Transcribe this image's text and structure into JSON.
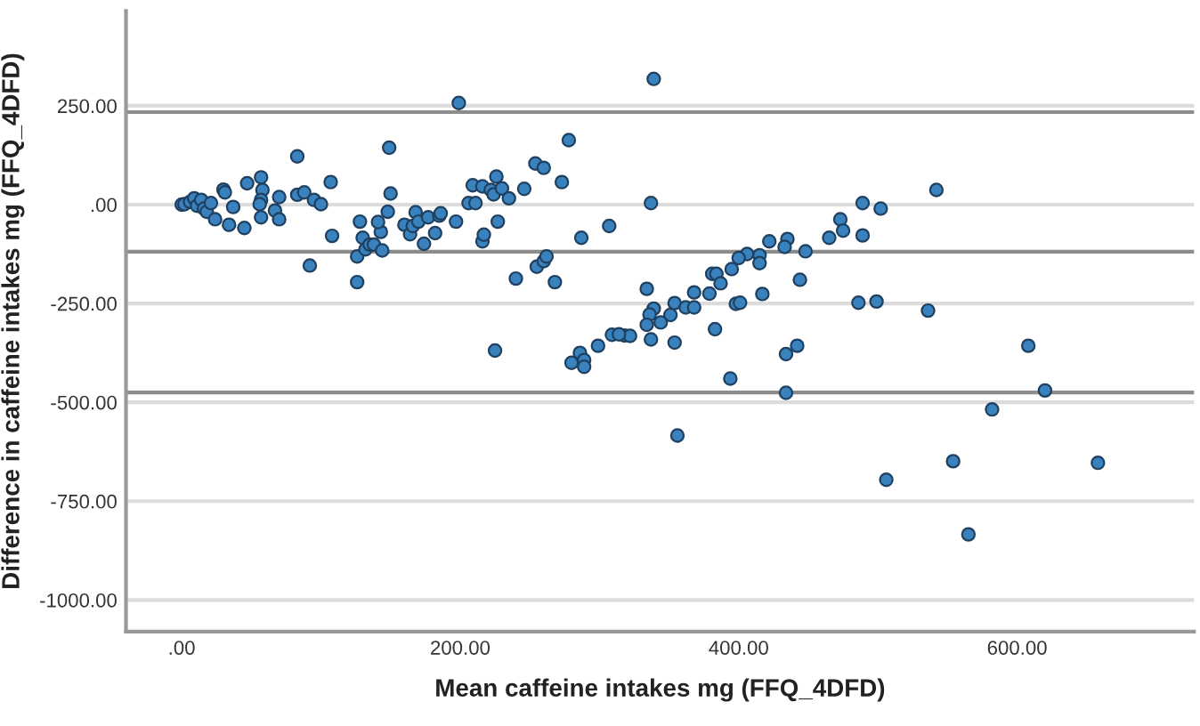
{
  "chart_data": {
    "type": "scatter",
    "xlabel": "Mean caffeine intakes mg (FFQ_4DFD)",
    "ylabel": "Difference in caffeine intakes mg (FFQ_4DFD)",
    "xlim": [
      -40,
      727
    ],
    "ylim": [
      -1080,
      490
    ],
    "xticks": [
      {
        "value": 0,
        "label": ".00"
      },
      {
        "value": 200,
        "label": "200.00"
      },
      {
        "value": 400,
        "label": "400.00"
      },
      {
        "value": 600,
        "label": "600.00"
      }
    ],
    "yticks": [
      {
        "value": -1000,
        "label": "-1000.00"
      },
      {
        "value": -750,
        "label": "-750.00"
      },
      {
        "value": -500,
        "label": "-500.00"
      },
      {
        "value": -250,
        "label": "-250.00"
      },
      {
        "value": 0,
        "label": ".00"
      },
      {
        "value": 250,
        "label": "250.00"
      }
    ],
    "grid": "y",
    "marker": "circle",
    "ref_lines": [
      {
        "axis": "y",
        "value": 234,
        "color": "#8c8c8c"
      },
      {
        "axis": "y",
        "value": -119,
        "color": "#8c8c8c"
      },
      {
        "axis": "y",
        "value": -475,
        "color": "#8c8c8c"
      }
    ],
    "series": [
      {
        "color": "#3a82bd",
        "x": [
          0,
          2,
          6,
          9,
          11,
          14,
          16,
          18,
          21,
          24,
          30,
          31,
          34,
          37,
          45,
          47,
          57,
          57,
          58,
          57,
          56,
          67,
          70,
          70,
          83,
          83,
          88,
          92,
          95,
          100,
          107,
          108,
          126,
          126,
          128,
          130,
          132,
          135,
          138,
          143,
          144,
          141,
          148,
          149,
          150,
          160,
          164,
          166,
          168,
          170,
          174,
          177,
          182,
          185,
          186,
          197,
          199,
          206,
          209,
          211,
          216,
          216,
          217,
          222,
          224,
          226,
          227,
          230,
          225,
          235,
          240,
          246,
          254,
          260,
          255,
          260,
          262,
          268,
          273,
          278,
          280,
          286,
          289,
          289,
          287,
          339,
          337,
          307,
          542,
          489,
          502,
          473,
          475,
          465,
          489,
          422,
          435,
          433,
          448,
          406,
          400,
          415,
          415,
          395,
          381,
          384,
          387,
          444,
          334,
          417,
          379,
          368,
          354,
          362,
          368,
          398,
          401,
          486,
          499,
          536,
          339,
          336,
          351,
          344,
          334,
          337,
          354,
          383,
          318,
          322,
          309,
          314,
          299,
          434,
          442,
          394,
          434,
          608,
          620,
          582,
          356,
          506,
          554,
          658,
          565
        ],
        "values": [
          0,
          1,
          7,
          16,
          -3,
          12,
          -10,
          -18,
          4,
          -37,
          38,
          31,
          -51,
          -6,
          -59,
          54,
          69,
          -32,
          37,
          12,
          1,
          -15,
          -37,
          19,
          122,
          25,
          31,
          -154,
          12,
          1,
          57,
          -79,
          -196,
          -131,
          -43,
          -84,
          -113,
          -101,
          -101,
          -69,
          -116,
          -44,
          -18,
          144,
          28,
          -51,
          -75,
          -54,
          -19,
          -43,
          -99,
          -32,
          -72,
          -28,
          -22,
          -43,
          257,
          4,
          49,
          4,
          46,
          -93,
          -76,
          37,
          26,
          71,
          -43,
          41,
          -369,
          16,
          -187,
          40,
          104,
          93,
          -157,
          -143,
          -131,
          -196,
          57,
          163,
          -400,
          -375,
          -393,
          -410,
          -84,
          318,
          4,
          -54,
          37,
          4,
          -10,
          -37,
          -66,
          -84,
          -78,
          -93,
          -87,
          -107,
          -118,
          -125,
          -135,
          -128,
          -148,
          -163,
          -175,
          -175,
          -199,
          -190,
          -213,
          -226,
          -225,
          -222,
          -249,
          -260,
          -260,
          -251,
          -248,
          -248,
          -245,
          -268,
          -263,
          -278,
          -279,
          -298,
          -304,
          -341,
          -349,
          -315,
          -331,
          -332,
          -329,
          -328,
          -357,
          -378,
          -357,
          -440,
          -476,
          -357,
          -470,
          -518,
          -584,
          -696,
          -649,
          -653,
          -834
        ]
      }
    ]
  }
}
